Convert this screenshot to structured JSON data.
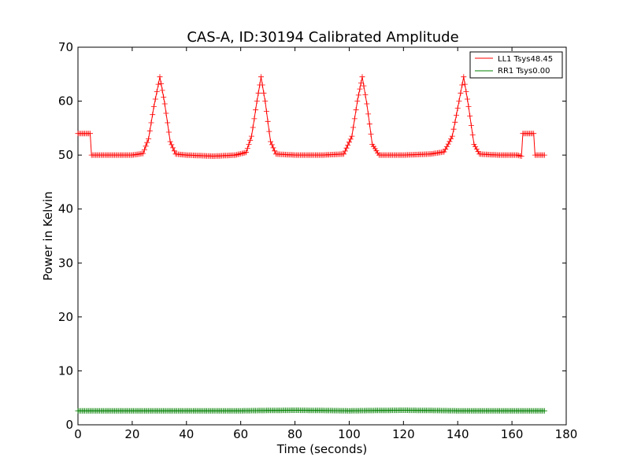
{
  "chart_data": {
    "type": "line",
    "title": "CAS-A, ID:30194 Calibrated Amplitude",
    "xlabel": "Time (seconds)",
    "ylabel": "Power in Kelvin",
    "xlim": [
      0,
      180
    ],
    "ylim": [
      0,
      70
    ],
    "x_ticks": [
      "0",
      "20",
      "40",
      "60",
      "80",
      "100",
      "120",
      "140",
      "160",
      "180"
    ],
    "y_ticks": [
      "0",
      "10",
      "20",
      "30",
      "40",
      "50",
      "60",
      "70"
    ],
    "grid": false,
    "legend_position": "upper-right",
    "series": [
      {
        "name": "LL1 Tsys48.45",
        "color": "#ff0000",
        "marker": "+",
        "baseline": 50.0,
        "cal_level": 54.0,
        "peaks": [
          {
            "t": 30.2,
            "value": 64.5
          },
          {
            "t": 67.5,
            "value": 64.5
          },
          {
            "t": 104.8,
            "value": 64.5
          },
          {
            "t": 142.2,
            "value": 64.5
          }
        ],
        "points": [
          [
            0,
            54.0
          ],
          [
            2,
            54.0
          ],
          [
            4.5,
            54.0
          ],
          [
            5,
            50.0
          ],
          [
            10,
            50.0
          ],
          [
            20,
            50.0
          ],
          [
            24,
            50.3
          ],
          [
            26,
            53.0
          ],
          [
            28,
            59.0
          ],
          [
            30.2,
            64.5
          ],
          [
            32,
            59.5
          ],
          [
            34,
            52.5
          ],
          [
            36,
            50.2
          ],
          [
            40,
            50.0
          ],
          [
            50,
            49.8
          ],
          [
            58,
            50.0
          ],
          [
            62,
            50.5
          ],
          [
            64,
            53.5
          ],
          [
            66,
            60.0
          ],
          [
            67.5,
            64.5
          ],
          [
            69,
            60.0
          ],
          [
            71,
            52.5
          ],
          [
            73,
            50.2
          ],
          [
            80,
            50.0
          ],
          [
            90,
            50.0
          ],
          [
            98,
            50.2
          ],
          [
            101,
            53.5
          ],
          [
            103,
            60.0
          ],
          [
            104.8,
            64.5
          ],
          [
            106.5,
            59.5
          ],
          [
            108.5,
            52.0
          ],
          [
            111,
            50.0
          ],
          [
            120,
            50.0
          ],
          [
            130,
            50.2
          ],
          [
            135,
            50.6
          ],
          [
            138,
            53.5
          ],
          [
            140.5,
            60.0
          ],
          [
            142.2,
            64.5
          ],
          [
            144,
            59.0
          ],
          [
            146,
            52.0
          ],
          [
            148,
            50.2
          ],
          [
            155,
            50.0
          ],
          [
            162,
            50.0
          ],
          [
            163.5,
            49.8
          ],
          [
            164,
            54.0
          ],
          [
            168,
            54.0
          ],
          [
            168.5,
            50.0
          ],
          [
            172,
            50.0
          ]
        ]
      },
      {
        "name": "RR1 Tsys0.00",
        "color": "#008000",
        "marker": "+",
        "points": [
          [
            0,
            2.6
          ],
          [
            20,
            2.6
          ],
          [
            40,
            2.6
          ],
          [
            60,
            2.6
          ],
          [
            80,
            2.7
          ],
          [
            100,
            2.6
          ],
          [
            120,
            2.7
          ],
          [
            140,
            2.6
          ],
          [
            160,
            2.6
          ],
          [
            172,
            2.6
          ]
        ]
      }
    ]
  }
}
